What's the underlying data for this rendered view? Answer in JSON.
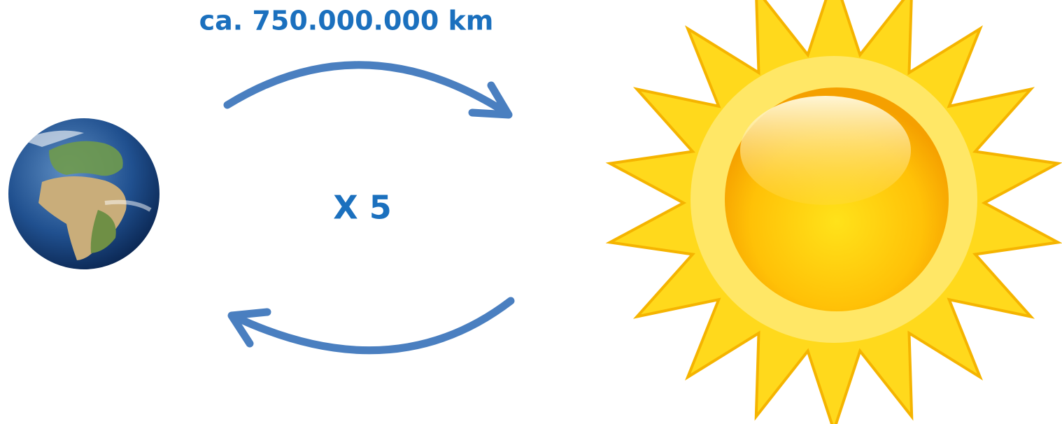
{
  "labels": {
    "distance": "ca. 750.000.000 km",
    "multiplier": "X 5"
  }
}
